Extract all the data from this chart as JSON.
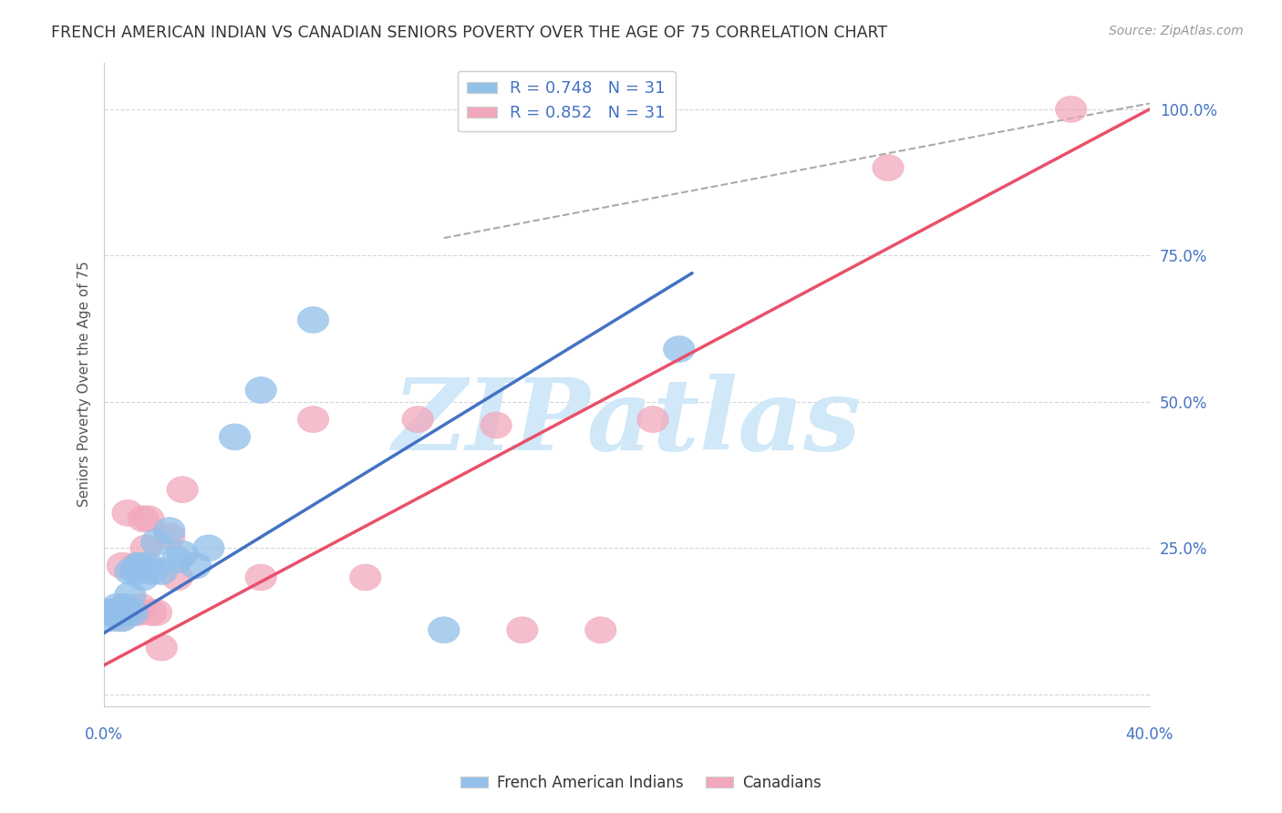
{
  "title": "FRENCH AMERICAN INDIAN VS CANADIAN SENIORS POVERTY OVER THE AGE OF 75 CORRELATION CHART",
  "source": "Source: ZipAtlas.com",
  "ylabel": "Seniors Poverty Over the Age of 75",
  "xlim": [
    0,
    0.4
  ],
  "ylim": [
    -0.02,
    1.08
  ],
  "yticks": [
    0.0,
    0.25,
    0.5,
    0.75,
    1.0
  ],
  "ytick_labels": [
    "",
    "25.0%",
    "50.0%",
    "75.0%",
    "100.0%"
  ],
  "xtick_labels": [
    "0.0%",
    "",
    "",
    "",
    "",
    "",
    "",
    "",
    "40.0%"
  ],
  "xtick_positions": [
    0.0,
    0.05,
    0.1,
    0.15,
    0.2,
    0.25,
    0.3,
    0.35,
    0.4
  ],
  "legend_r1": "R = 0.748   N = 31",
  "legend_r2": "R = 0.852   N = 31",
  "blue_color": "#92c0ea",
  "pink_color": "#f2a8bc",
  "blue_line_color": "#4472c4",
  "pink_line_color": "#e8516a",
  "watermark_color": "#d0e8f8",
  "blue_scatter_x": [
    0.002,
    0.003,
    0.004,
    0.005,
    0.005,
    0.006,
    0.007,
    0.007,
    0.008,
    0.009,
    0.01,
    0.01,
    0.011,
    0.012,
    0.013,
    0.014,
    0.015,
    0.017,
    0.018,
    0.02,
    0.022,
    0.025,
    0.028,
    0.03,
    0.035,
    0.04,
    0.05,
    0.06,
    0.08,
    0.13,
    0.22
  ],
  "blue_scatter_y": [
    0.14,
    0.13,
    0.14,
    0.14,
    0.15,
    0.14,
    0.14,
    0.13,
    0.15,
    0.14,
    0.17,
    0.21,
    0.14,
    0.21,
    0.22,
    0.22,
    0.2,
    0.22,
    0.21,
    0.26,
    0.21,
    0.28,
    0.23,
    0.24,
    0.22,
    0.25,
    0.44,
    0.52,
    0.64,
    0.11,
    0.59
  ],
  "pink_scatter_x": [
    0.002,
    0.003,
    0.005,
    0.006,
    0.007,
    0.008,
    0.009,
    0.01,
    0.011,
    0.012,
    0.013,
    0.014,
    0.015,
    0.016,
    0.017,
    0.018,
    0.02,
    0.022,
    0.025,
    0.028,
    0.03,
    0.06,
    0.08,
    0.1,
    0.12,
    0.15,
    0.16,
    0.19,
    0.21,
    0.3,
    0.37
  ],
  "pink_scatter_y": [
    0.14,
    0.14,
    0.14,
    0.13,
    0.22,
    0.14,
    0.31,
    0.14,
    0.14,
    0.22,
    0.14,
    0.15,
    0.3,
    0.25,
    0.3,
    0.14,
    0.14,
    0.08,
    0.27,
    0.2,
    0.35,
    0.2,
    0.47,
    0.2,
    0.47,
    0.46,
    0.11,
    0.11,
    0.47,
    0.9,
    1.0
  ],
  "blue_trend_x": [
    0.0,
    0.225
  ],
  "blue_trend_y": [
    0.105,
    0.72
  ],
  "pink_trend_x": [
    0.0,
    0.4
  ],
  "pink_trend_y": [
    0.05,
    1.0
  ],
  "ref_line_x": [
    0.13,
    0.4
  ],
  "ref_line_y": [
    0.78,
    1.01
  ]
}
